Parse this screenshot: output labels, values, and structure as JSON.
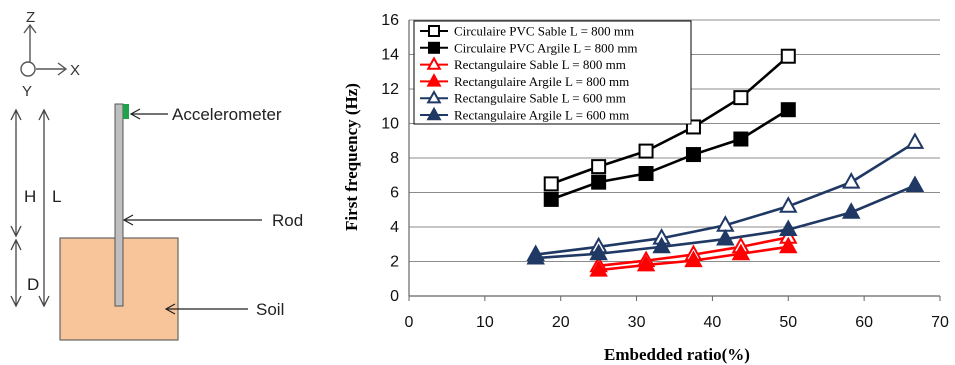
{
  "diagram": {
    "axis_z": "Z",
    "axis_x": "X",
    "axis_y": "Y",
    "label_h": "H",
    "label_l": "L",
    "label_d": "D",
    "accelerometer": "Accelerometer",
    "rod": "Rod",
    "soil": "Soil",
    "colors": {
      "soil": "#F8C49A",
      "rod": "#BFBFBF",
      "accelerometer": "#1FA34A"
    }
  },
  "chart_data": {
    "type": "line",
    "xlabel": "Embedded ratio(%)",
    "ylabel": "First frequency (Hz)",
    "xlim": [
      0,
      70
    ],
    "ylim": [
      0,
      16
    ],
    "xticks": [
      0,
      10,
      20,
      30,
      40,
      50,
      60,
      70
    ],
    "yticks": [
      0,
      2,
      4,
      6,
      8,
      10,
      12,
      14,
      16
    ],
    "grid": "horizontal",
    "legend_position": "top-left",
    "series": [
      {
        "name": "Circulaire PVC Sable L = 800 mm",
        "color": "#000000",
        "marker": "square-open",
        "x": [
          18.75,
          25,
          31.25,
          37.5,
          43.75,
          50
        ],
        "y": [
          6.5,
          7.5,
          8.4,
          9.8,
          11.5,
          13.9
        ]
      },
      {
        "name": "Circulaire PVC Argile L = 800 mm",
        "color": "#000000",
        "marker": "square-filled",
        "x": [
          18.75,
          25,
          31.25,
          37.5,
          43.75,
          50
        ],
        "y": [
          5.6,
          6.6,
          7.1,
          8.2,
          9.1,
          10.8
        ]
      },
      {
        "name": "Rectangulaire Sable L = 800 mm",
        "color": "#FF0000",
        "marker": "triangle-open",
        "x": [
          25,
          31.25,
          37.5,
          43.75,
          50
        ],
        "y": [
          1.75,
          2.05,
          2.4,
          2.85,
          3.4
        ]
      },
      {
        "name": "Rectangulaire Argile L = 800 mm",
        "color": "#FF0000",
        "marker": "triangle-filled",
        "x": [
          25,
          31.25,
          37.5,
          43.75,
          50
        ],
        "y": [
          1.5,
          1.8,
          2.05,
          2.45,
          2.85
        ]
      },
      {
        "name": "Rectangulaire Sable L = 600 mm",
        "color": "#1F3864",
        "marker": "triangle-open",
        "x": [
          16.7,
          25,
          33.3,
          41.7,
          50,
          58.3,
          66.7
        ],
        "y": [
          2.4,
          2.85,
          3.35,
          4.1,
          5.2,
          6.6,
          8.9
        ]
      },
      {
        "name": "Rectangulaire Argile L = 600 mm",
        "color": "#1F3864",
        "marker": "triangle-filled",
        "x": [
          16.7,
          25,
          33.3,
          41.7,
          50,
          58.3,
          66.7
        ],
        "y": [
          2.2,
          2.45,
          2.85,
          3.3,
          3.85,
          4.85,
          6.4
        ]
      }
    ]
  }
}
